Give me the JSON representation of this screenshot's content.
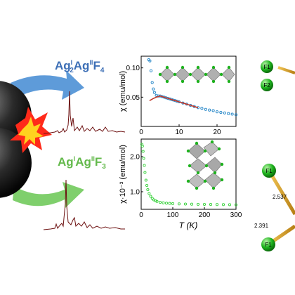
{
  "colors": {
    "formula_top": "#3d6fb6",
    "formula_bottom": "#63b94b",
    "fit_red": "#c0392b",
    "points_blue": "#1f83c6",
    "points_green": "#36d13a",
    "spectrum": "#6b0e0e",
    "atom_green": "#1db21d",
    "bond_gold": "#d9a021",
    "arrow_blue": "#5e9bd9",
    "arrow_green": "#7fcf6c"
  },
  "formulas": {
    "top": {
      "a": "Ag",
      "s1": "I",
      "n1": "2",
      "b": "Ag",
      "s2": "II",
      "c": "F",
      "n2": "4"
    },
    "bottom": {
      "a": "Ag",
      "s1": "I",
      "b": "Ag",
      "s2": "II",
      "c": "F",
      "n2": "3"
    }
  },
  "atoms": {
    "f1": "F1",
    "f2": "F2"
  },
  "distances": {
    "d1": "2.537",
    "d2": "2.391"
  },
  "chart_data": [
    {
      "type": "scatter",
      "title": "",
      "xlabel": "",
      "ylabel": "χ (emu/mol)",
      "xlim": [
        0,
        25
      ],
      "ylim": [
        0,
        0.12
      ],
      "xticks": [
        "0",
        "10",
        "20"
      ],
      "yticks": [
        "0.05",
        "0.10"
      ],
      "series": [
        {
          "color": "points_blue",
          "kind": "points",
          "x": [
            2.0,
            2.3,
            2.6,
            2.9,
            3.2,
            3.5,
            4,
            4.5,
            5,
            5.5,
            6,
            6.5,
            7,
            7.5,
            8,
            8.5,
            9,
            9.5,
            10,
            11,
            12,
            13,
            14,
            15,
            16,
            17,
            18,
            19,
            20,
            21,
            22,
            23,
            24,
            25
          ],
          "y": [
            0.114,
            0.112,
            0.095,
            0.075,
            0.064,
            0.058,
            0.053,
            0.052,
            0.052,
            0.051,
            0.05,
            0.049,
            0.048,
            0.047,
            0.046,
            0.045,
            0.044,
            0.043,
            0.042,
            0.04,
            0.038,
            0.036,
            0.034,
            0.032,
            0.031,
            0.029,
            0.028,
            0.027,
            0.025,
            0.024,
            0.023,
            0.022,
            0.021,
            0.02
          ]
        },
        {
          "color": "fit_red",
          "kind": "line",
          "x": [
            2.2,
            3,
            4,
            5,
            6,
            7,
            8,
            9,
            10,
            11,
            12,
            13,
            14,
            15
          ],
          "y": [
            0.044,
            0.047,
            0.05,
            0.052,
            0.05,
            0.048,
            0.046,
            0.044,
            0.042,
            0.04,
            0.038,
            0.036,
            0.034,
            0.032
          ]
        }
      ]
    },
    {
      "type": "scatter",
      "title": "",
      "xlabel": "T (K)",
      "ylabel": "χ·10⁻³ (emu/mol)",
      "xlim": [
        0,
        300
      ],
      "ylim": [
        0.5,
        2.5
      ],
      "xticks": [
        "0",
        "100",
        "200",
        "300"
      ],
      "yticks": [
        "1.0",
        "2.0"
      ],
      "series": [
        {
          "color": "points_green",
          "kind": "points",
          "x": [
            2,
            4,
            6,
            8,
            10,
            12,
            15,
            18,
            21,
            25,
            30,
            35,
            40,
            45,
            50,
            60,
            70,
            80,
            90,
            100,
            120,
            140,
            160,
            180,
            200,
            220,
            240,
            260,
            280,
            300
          ],
          "y": [
            2.35,
            2.3,
            2.15,
            1.95,
            1.75,
            1.55,
            1.33,
            1.18,
            1.06,
            0.95,
            0.87,
            0.81,
            0.77,
            0.745,
            0.725,
            0.7,
            0.685,
            0.675,
            0.668,
            0.662,
            0.655,
            0.65,
            0.646,
            0.643,
            0.64,
            0.638,
            0.636,
            0.634,
            0.632,
            0.63
          ]
        }
      ]
    }
  ]
}
